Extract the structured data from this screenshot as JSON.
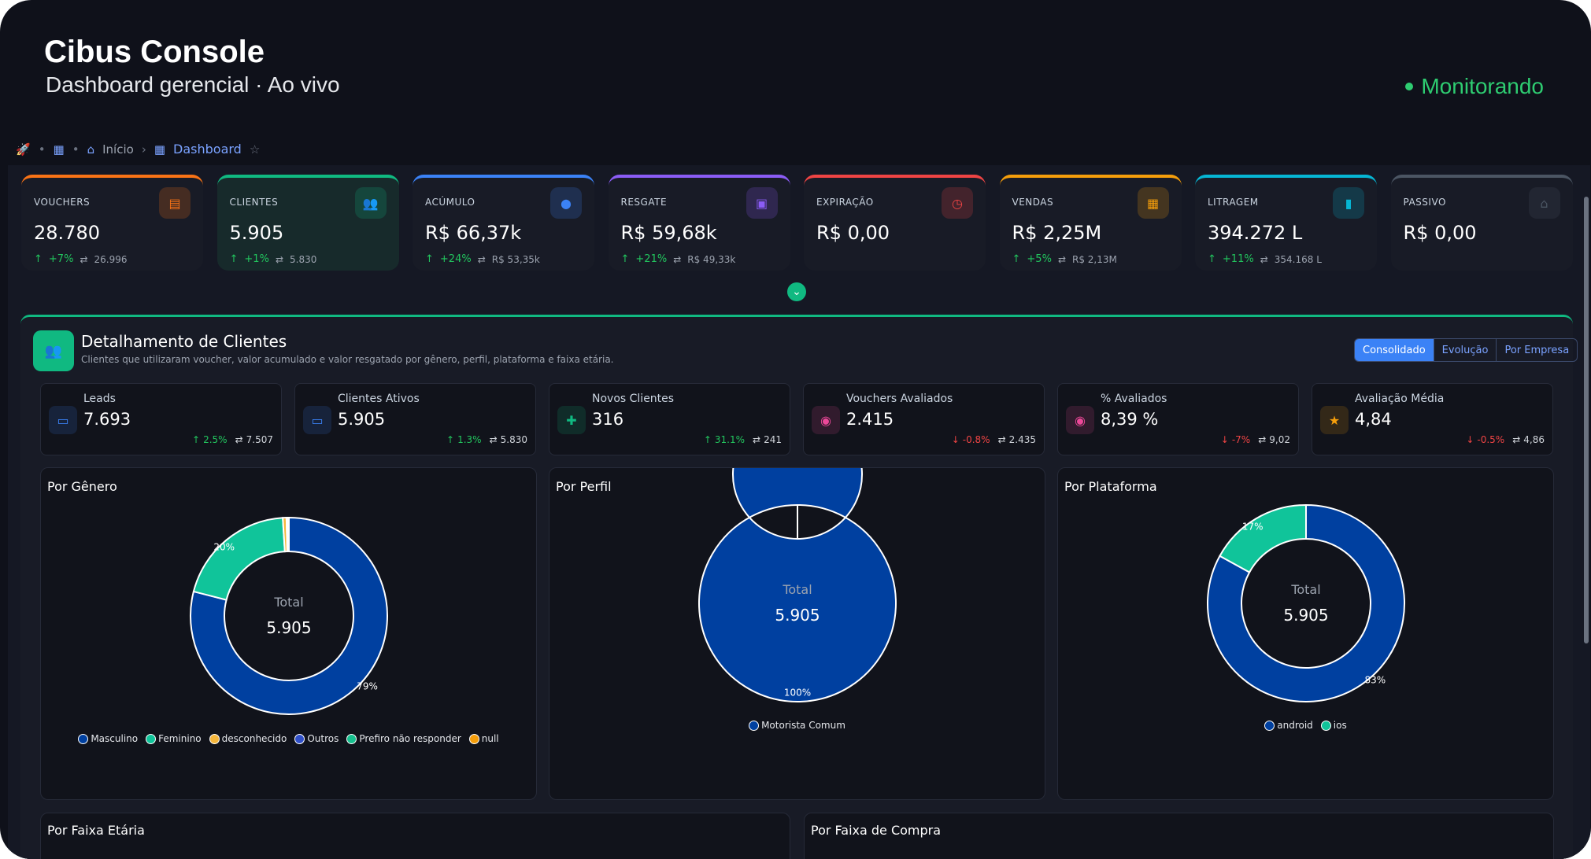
{
  "app": {
    "title": "Cibus Console",
    "subtitle": "Dashboard gerencial · Ao vivo",
    "status": "Monitorando"
  },
  "breadcrumb": {
    "home": "Início",
    "current": "Dashboard"
  },
  "kpis": [
    {
      "label": "VOUCHERS",
      "value": "28.780",
      "trend": "+7%",
      "previous": "26.996",
      "color": "#f97316",
      "icon": "ticket-icon"
    },
    {
      "label": "CLIENTES",
      "value": "5.905",
      "trend": "+1%",
      "previous": "5.830",
      "color": "#10b981",
      "icon": "users-icon"
    },
    {
      "label": "ACÚMULO",
      "value": "R$ 66,37k",
      "trend": "+24%",
      "previous": "R$ 53,35k",
      "color": "#3b82f6",
      "icon": "coin-icon"
    },
    {
      "label": "RESGATE",
      "value": "R$ 59,68k",
      "trend": "+21%",
      "previous": "R$ 49,33k",
      "color": "#8b5cf6",
      "icon": "gift-icon"
    },
    {
      "label": "EXPIRAÇÃO",
      "value": "R$ 0,00",
      "trend": "",
      "previous": "",
      "color": "#ef4444",
      "icon": "clock-icon"
    },
    {
      "label": "VENDAS",
      "value": "R$ 2,25M",
      "trend": "+5%",
      "previous": "R$ 2,13M",
      "color": "#f59e0b",
      "icon": "register-icon"
    },
    {
      "label": "LITRAGEM",
      "value": "394.272 L",
      "trend": "+11%",
      "previous": "354.168 L",
      "color": "#06b6d4",
      "icon": "fuel-icon"
    },
    {
      "label": "PASSIVO",
      "value": "R$ 0,00",
      "trend": "",
      "previous": "",
      "color": "#4b5563",
      "icon": "bank-icon"
    }
  ],
  "section": {
    "title": "Detalhamento de Clientes",
    "description": "Clientes que utilizaram voucher, valor acumulado e valor resgatado por gênero, perfil, plataforma e faixa etária.",
    "tabs": [
      "Consolidado",
      "Evolução",
      "Por Empresa"
    ],
    "active_tab": "Consolidado"
  },
  "metrics": [
    {
      "label": "Leads",
      "value": "7.693",
      "trend": "2.5%",
      "previous": "7.507",
      "direction": "up",
      "color": "#3b82f6",
      "icon": "id-card-icon"
    },
    {
      "label": "Clientes Ativos",
      "value": "5.905",
      "trend": "1.3%",
      "previous": "5.830",
      "direction": "up",
      "color": "#3b82f6",
      "icon": "id-card-icon"
    },
    {
      "label": "Novos Clientes",
      "value": "316",
      "trend": "31.1%",
      "previous": "241",
      "direction": "up",
      "color": "#10b981",
      "icon": "user-plus-icon"
    },
    {
      "label": "Vouchers Avaliados",
      "value": "2.415",
      "trend": "-0.8%",
      "previous": "2.435",
      "direction": "down",
      "color": "#ec4899",
      "icon": "eye-icon"
    },
    {
      "label": "% Avaliados",
      "value": "8,39 %",
      "trend": "-7%",
      "previous": "9,02",
      "direction": "down",
      "color": "#ec4899",
      "icon": "eye-icon"
    },
    {
      "label": "Avaliação Média",
      "value": "4,84",
      "trend": "-0.5%",
      "previous": "4,86",
      "direction": "down",
      "color": "#f59e0b",
      "icon": "star-icon"
    }
  ],
  "charts": [
    {
      "title": "Por Gênero",
      "center_label": "Total",
      "center_value": "5.905",
      "slices": [
        {
          "name": "Masculino",
          "value": 79,
          "label": "79%",
          "color": "#0040a0"
        },
        {
          "name": "Feminino",
          "value": 20,
          "label": "20%",
          "color": "#10c49a"
        },
        {
          "name": "desconhecido",
          "value": 0.6,
          "label": "",
          "color": "#f6b73c"
        },
        {
          "name": "Outros",
          "value": 0.2,
          "label": "",
          "color": "#3050c8"
        },
        {
          "name": "Prefiro não responder",
          "value": 0.1,
          "label": "",
          "color": "#16c08e"
        },
        {
          "name": "null",
          "value": 0.1,
          "label": "",
          "color": "#f59e0b"
        }
      ]
    },
    {
      "title": "Por Perfil",
      "center_label": "Total",
      "center_value": "5.905",
      "slices": [
        {
          "name": "Motorista Comum",
          "value": 100,
          "label": "100%",
          "color": "#0040a0"
        }
      ]
    },
    {
      "title": "Por Plataforma",
      "center_label": "Total",
      "center_value": "5.905",
      "slices": [
        {
          "name": "android",
          "value": 83,
          "label": "83%",
          "color": "#0040a0"
        },
        {
          "name": "ios",
          "value": 17,
          "label": "17%",
          "color": "#10c49a"
        }
      ]
    }
  ],
  "bottom_panels": [
    "Por Faixa Etária",
    "Por Faixa de Compra"
  ]
}
